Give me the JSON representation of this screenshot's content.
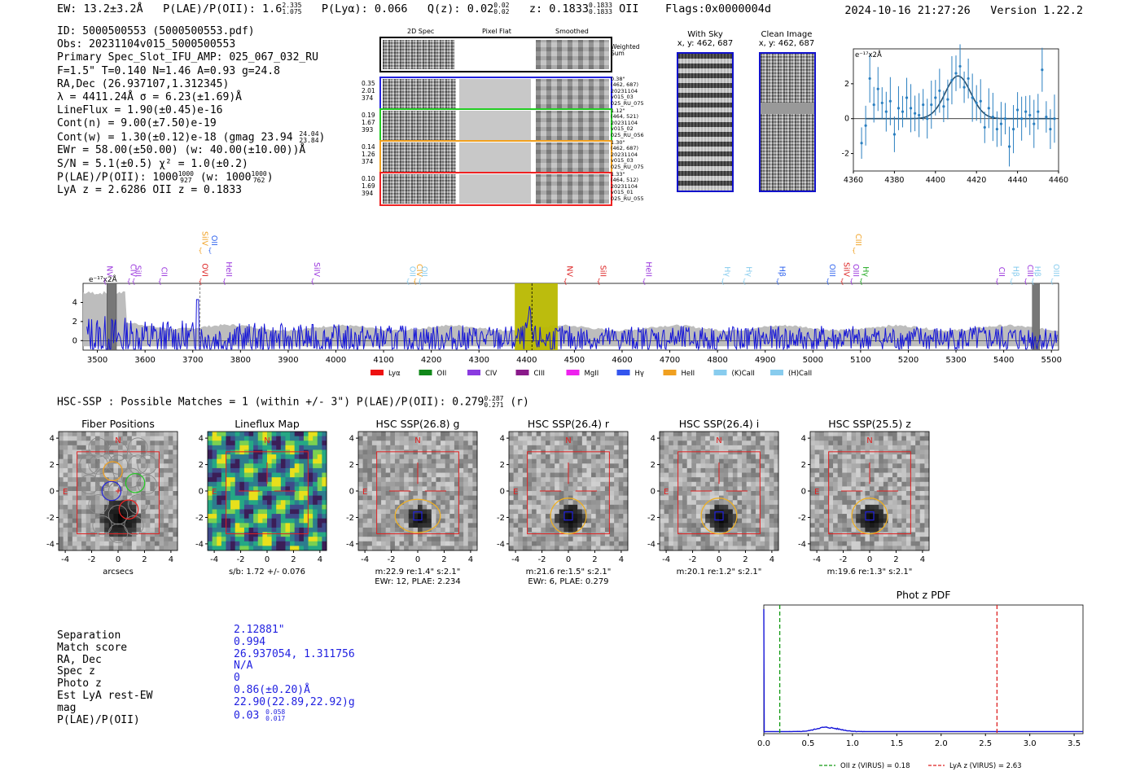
{
  "header": {
    "ew": "EW: 13.2±3.2Å",
    "plae_label": "P(LAE)/P(OII): 1.6",
    "plae_hi": "2.335",
    "plae_lo": "1.075",
    "plya": "P(Lyα): 0.066",
    "qz_label": "Q(z): 0.02",
    "qz_hi": "0.02",
    "qz_lo": "0.02",
    "z_label": "z: 0.1833",
    "z_hi": "0.1833",
    "z_lo": "0.1833",
    "z_tail": "OII",
    "flags": "Flags:0x0000004d",
    "datetime": "2024-10-16 21:27:26",
    "version": "Version 1.22.2"
  },
  "info": {
    "id": "ID: 5000500553 (5000500553.pdf)",
    "obs": "Obs: 20231104v015_5000500553",
    "primary": "Primary Spec_Slot_IFU_AMP: 025_067_032_RU",
    "fta": "F=1.5\"  T=0.140  N=1.46  A=0.93  g=24.8",
    "radec": "RA,Dec (26.937107,1.312345)",
    "lambda": "λ = 4411.24Å   σ = 6.23(±1.69)Å",
    "lineflux": "LineFlux = 1.90(±0.45)e-16",
    "contn": "Cont(n) = 9.00(±7.50)e-19",
    "contw": "Cont(w) = 1.30(±0.12)e-18 (gmag 23.94",
    "contw_hi": "24.04",
    "contw_lo": "23.84",
    "contw_tail": ")",
    "ewr": "EWr = 58.00(±50.00) (w: 40.00(±10.00))Å",
    "sn": "S/N = 5.1(±0.5)  χ² = 1.0(±0.2)",
    "plae_line": "P(LAE)/P(OII): 1000",
    "plae_line_hi": "1000",
    "plae_line_lo": "927",
    "plae_line_mid": "(w: 1000",
    "plae_line_mid_hi": "1000",
    "plae_line_mid_lo": "762",
    "plae_line_tail": ")",
    "lya": "LyA z = 2.6286  OII z = 0.1833"
  },
  "fibers": {
    "col_headers": [
      "2D Spec",
      "Pixel Flat",
      "Smoothed"
    ],
    "weighted": "Weighted\nSum",
    "rows": [
      {
        "left": [
          "0.35",
          "2.01",
          "374"
        ],
        "right": [
          "0.38\"",
          "(462, 687)",
          "20231104",
          "v015_03",
          "025_RU_075"
        ],
        "color": "#2222dd"
      },
      {
        "left": [
          "0.19",
          "1.67",
          "393"
        ],
        "right": [
          "1.12\"",
          "(464, 521)",
          "20231104",
          "v015_02",
          "025_RU_056"
        ],
        "color": "#22cc22"
      },
      {
        "left": [
          "0.14",
          "1.26",
          "374"
        ],
        "right": [
          "1.30\"",
          "(462, 687)",
          "20231104",
          "v015_03",
          "025_RU_075"
        ],
        "color": "#f0a020"
      },
      {
        "left": [
          "0.10",
          "1.69",
          "394"
        ],
        "right": [
          "1.33\"",
          "(464, 512)",
          "20231104",
          "v015_01",
          "025_RU_055"
        ],
        "color": "#ee2222"
      }
    ]
  },
  "sky": {
    "with_sky_title": "With Sky",
    "with_sky_coords": "x, y: 462, 687",
    "clean_title": "Clean Image",
    "clean_coords": "x, y: 462, 687"
  },
  "zoom_chart": {
    "type": "scatter",
    "ylabel": "e⁻¹⁷x2Å",
    "xlim": [
      4360,
      4460
    ],
    "ylim": [
      -3,
      4
    ],
    "x_ticks": [
      "4360",
      "4380",
      "4400",
      "4420",
      "4440",
      "4460"
    ],
    "y_ticks": [
      "-2",
      "0",
      "2"
    ],
    "x": [
      4364,
      4366,
      4368,
      4370,
      4372,
      4374,
      4376,
      4378,
      4380,
      4382,
      4384,
      4386,
      4388,
      4390,
      4392,
      4394,
      4396,
      4398,
      4400,
      4402,
      4404,
      4406,
      4408,
      4410,
      4412,
      4414,
      4416,
      4418,
      4420,
      4422,
      4424,
      4426,
      4428,
      4430,
      4432,
      4434,
      4436,
      4438,
      4440,
      4442,
      4444,
      4446,
      4448,
      4450,
      4452,
      4454,
      4456,
      4458
    ],
    "y": [
      -1.4,
      -0.4,
      2.3,
      0.8,
      1.7,
      0.9,
      0.4,
      1.0,
      -0.9,
      0.6,
      0.4,
      1.2,
      0.6,
      0.3,
      0.2,
      0.8,
      0.0,
      0.8,
      1.2,
      1.6,
      0.7,
      1.1,
      2.2,
      2.6,
      3.0,
      1.8,
      2.3,
      1.2,
      0.9,
      1.0,
      -0.5,
      0.6,
      0.1,
      -0.6,
      -0.3,
      0.0,
      -1.6,
      -0.6,
      0.5,
      0.0,
      0.4,
      0.2,
      -0.3,
      0.4,
      2.8,
      0.1,
      -0.6,
      0.0
    ]
  },
  "spectrum": {
    "ylabel": "e⁻¹⁷x2Å",
    "xlim": [
      3470,
      5515
    ],
    "ylim": [
      -1,
      6
    ],
    "x_ticks": [
      "3500",
      "3600",
      "3700",
      "3800",
      "3900",
      "4000",
      "4100",
      "4200",
      "4300",
      "4400",
      "4500",
      "4600",
      "4700",
      "4800",
      "4900",
      "5000",
      "5100",
      "5200",
      "5300",
      "5400",
      "5500"
    ],
    "y_ticks": [
      "0",
      "2",
      "4"
    ],
    "line_labels": [
      {
        "text": "NV",
        "x": 3515,
        "color": "#9933dd",
        "tier": 1
      },
      {
        "text": "CIV",
        "x": 3565,
        "color": "#9933dd",
        "tier": 1
      },
      {
        "text": "SiII",
        "x": 3575,
        "color": "#9933dd",
        "tier": 1
      },
      {
        "text": "CII",
        "x": 3630,
        "color": "#9933dd",
        "tier": 1
      },
      {
        "text": "OVI",
        "x": 3715,
        "color": "#dd2222",
        "tier": 1
      },
      {
        "text": "SiIV",
        "x": 3715,
        "color": "#f0a020",
        "tier": 2
      },
      {
        "text": "OII",
        "x": 3735,
        "color": "#3366ee",
        "tier": 2
      },
      {
        "text": "HeII",
        "x": 3765,
        "color": "#9933dd",
        "tier": 1
      },
      {
        "text": "SiIV",
        "x": 3950,
        "color": "#9933dd",
        "tier": 1
      },
      {
        "text": "OII",
        "x": 4150,
        "color": "#88ccee",
        "tier": 1
      },
      {
        "text": "CIV",
        "x": 4165,
        "color": "#f0a020",
        "tier": 1
      },
      {
        "text": "OII",
        "x": 4175,
        "color": "#88ccee",
        "tier": 1
      },
      {
        "text": "NV",
        "x": 4480,
        "color": "#dd2222",
        "tier": 1
      },
      {
        "text": "SiII",
        "x": 4550,
        "color": "#dd2222",
        "tier": 1
      },
      {
        "text": "HeII",
        "x": 4645,
        "color": "#9933dd",
        "tier": 1
      },
      {
        "text": "Hγ",
        "x": 4810,
        "color": "#88ccee",
        "tier": 1
      },
      {
        "text": "Hγ",
        "x": 4855,
        "color": "#88ccee",
        "tier": 1
      },
      {
        "text": "Hβ",
        "x": 4925,
        "color": "#3366ee",
        "tier": 1
      },
      {
        "text": "OIII",
        "x": 5030,
        "color": "#3366ee",
        "tier": 1
      },
      {
        "text": "SiIV",
        "x": 5060,
        "color": "#dd2222",
        "tier": 1
      },
      {
        "text": "OIII",
        "x": 5080,
        "color": "#9933dd",
        "tier": 1
      },
      {
        "text": "CIII",
        "x": 5085,
        "color": "#f0a020",
        "tier": 2
      },
      {
        "text": "Hγ",
        "x": 5100,
        "color": "#22aa22",
        "tier": 1
      },
      {
        "text": "CII",
        "x": 5385,
        "color": "#9933dd",
        "tier": 1
      },
      {
        "text": "Hβ",
        "x": 5415,
        "color": "#88ccee",
        "tier": 1
      },
      {
        "text": "CIII",
        "x": 5445,
        "color": "#9933dd",
        "tier": 1
      },
      {
        "text": "Hβ",
        "x": 5460,
        "color": "#88ccee",
        "tier": 1
      },
      {
        "text": "OIII",
        "x": 5500,
        "color": "#88ccee",
        "tier": 1
      }
    ],
    "highlight_band": [
      4375,
      4465
    ],
    "marker_line": 4411,
    "hatched_regions": [
      [
        3520,
        3540
      ],
      [
        5460,
        5475
      ]
    ],
    "legend": [
      {
        "label": "Lyα",
        "color": "#ee1111"
      },
      {
        "label": "OII",
        "color": "#11881a"
      },
      {
        "label": "CIV",
        "color": "#8a3be0"
      },
      {
        "label": "CIII",
        "color": "#8a1a8a"
      },
      {
        "label": "MgII",
        "color": "#ee22ee"
      },
      {
        "label": "Hγ",
        "color": "#3355ee"
      },
      {
        "label": "HeII",
        "color": "#f0a020"
      },
      {
        "label": "(K)CaII",
        "color": "#88ccee"
      },
      {
        "label": "(H)CaII",
        "color": "#88ccee"
      }
    ]
  },
  "hsc": {
    "summary": "HSC-SSP : Possible Matches = 1 (within +/- 3\")  P(LAE)/P(OII): 0.279",
    "summary_hi": "0.287",
    "summary_lo": "0.271",
    "summary_tail": "(r)",
    "panels": [
      {
        "title": "Fiber Positions",
        "xlabel": "arcsecs",
        "line1": "",
        "line2": ""
      },
      {
        "title": "Lineflux Map",
        "xlabel": "s/b: 1.72 +/- 0.076",
        "line1": "",
        "line2": ""
      },
      {
        "title": "HSC SSP(26.8) g",
        "xlabel": "",
        "line1": "m:22.9  re:1.4\"  s:2.1\"",
        "line2": "EWr: 12, PLAE: 2.234"
      },
      {
        "title": "HSC SSP(26.4) r",
        "xlabel": "",
        "line1": "m:21.6  re:1.5\"  s:2.1\"",
        "line2": "EWr: 6, PLAE: 0.279"
      },
      {
        "title": "HSC SSP(26.4) i",
        "xlabel": "",
        "line1": "m:20.1  re:1.2\"  s:2.1\"",
        "line2": ""
      },
      {
        "title": "HSC SSP(25.5) z",
        "xlabel": "",
        "line1": "m:19.6  re:1.3\"  s:2.1\"",
        "line2": ""
      }
    ],
    "ticks": [
      "-4",
      "-2",
      "0",
      "2",
      "4"
    ],
    "compass_n": "N",
    "compass_e": "E"
  },
  "match": {
    "labels": [
      "Separation",
      "Match score",
      "RA, Dec",
      "Spec z",
      "Photo z",
      "Est LyA rest-EW",
      "mag",
      "P(LAE)/P(OII)"
    ],
    "values": [
      "2.12881\"",
      "0.994",
      "26.937054, 1.311756",
      "N/A",
      "0",
      "0.86(±0.20)Å",
      "22.90(22.89,22.92)g",
      "0.03"
    ],
    "plae_hi": "0.058",
    "plae_lo": "0.017"
  },
  "photz": {
    "type": "line",
    "title": "Phot z PDF",
    "xlim": [
      0.0,
      3.6
    ],
    "x_ticks": [
      "0.0",
      "0.5",
      "1.0",
      "1.5",
      "2.0",
      "2.5",
      "3.0",
      "3.5"
    ],
    "oii_z": 0.18,
    "lya_z": 2.63,
    "legend_oii": "OII z (VIRUS) = 0.18",
    "legend_lya": "LyA z (VIRUS) = 2.63"
  }
}
